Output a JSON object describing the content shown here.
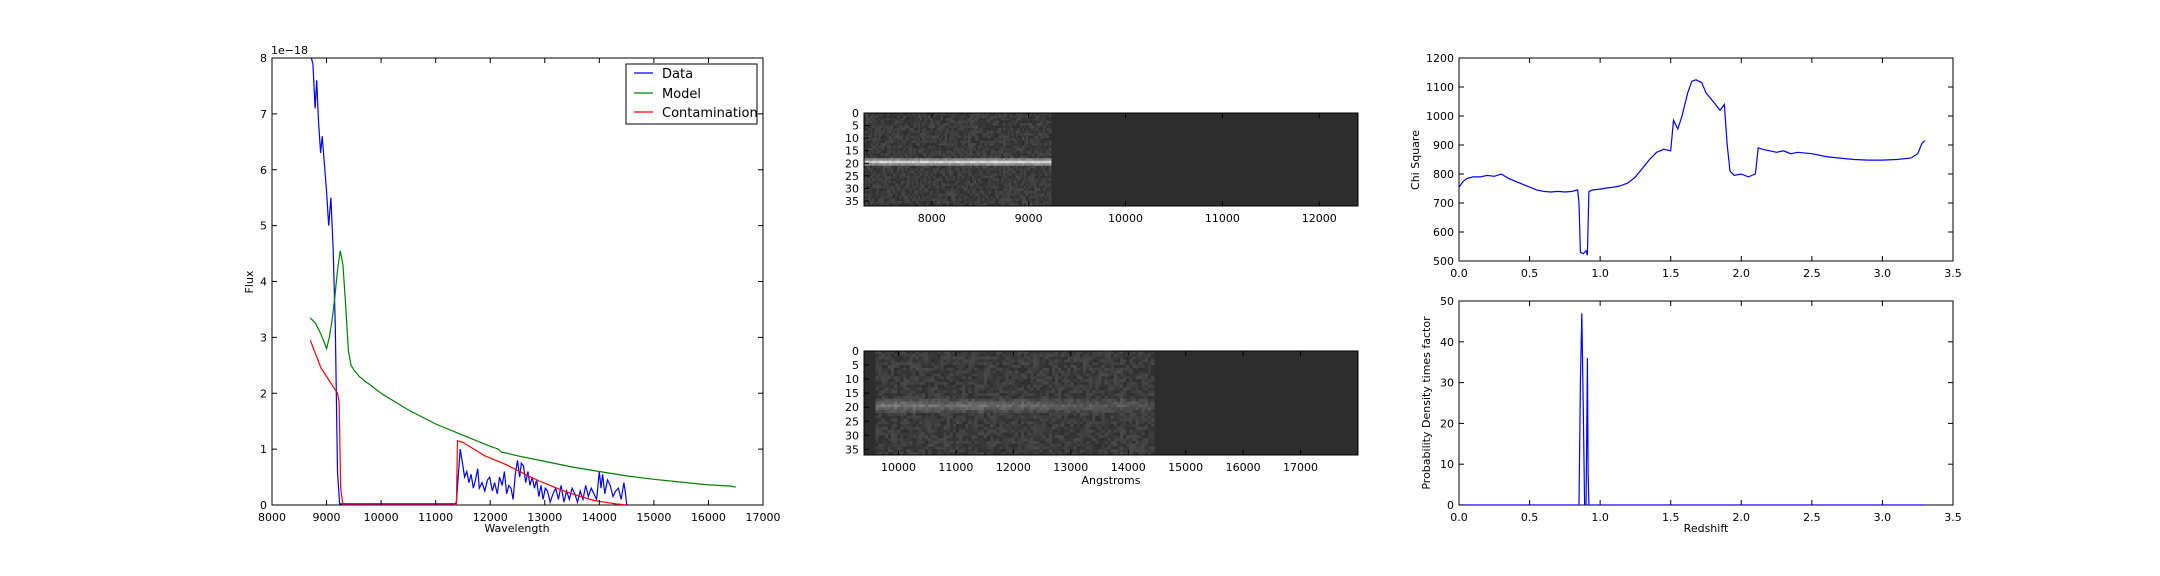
{
  "chart_data": [
    {
      "type": "line",
      "xlabel": "Wavelength",
      "ylabel": "Flux",
      "offset_label": "1e−18",
      "xlim": [
        8000,
        17000
      ],
      "ylim": [
        0,
        8
      ],
      "xticks": [
        "8000",
        "9000",
        "10000",
        "11000",
        "12000",
        "13000",
        "14000",
        "15000",
        "16000",
        "17000"
      ],
      "yticks": [
        "0",
        "1",
        "2",
        "3",
        "4",
        "5",
        "6",
        "7",
        "8"
      ],
      "legend": "top-right",
      "series": [
        {
          "name": "Data",
          "color": "#0000ff",
          "x": [
            8720,
            8750,
            8790,
            8820,
            8850,
            8890,
            8920,
            8960,
            9000,
            9040,
            9080,
            9120,
            9160,
            9200,
            9240,
            9270,
            9300,
            9350,
            9400,
            11350,
            11380,
            11420,
            11450,
            11500,
            11530,
            11570,
            11610,
            11650,
            11690,
            11730,
            11770,
            11800,
            11850,
            11900,
            11950,
            11990,
            12040,
            12080,
            12130,
            12170,
            12220,
            12260,
            12300,
            12340,
            12380,
            12420,
            12460,
            12500,
            12540,
            12570,
            12610,
            12650,
            12690,
            12730,
            12770,
            12810,
            12850,
            12890,
            12930,
            12970,
            13010,
            13050,
            13100,
            13150,
            13200,
            13250,
            13300,
            13350,
            13400,
            13450,
            13500,
            13550,
            13600,
            13650,
            13700,
            13750,
            13800,
            13850,
            13900,
            13950,
            14000,
            14030,
            14060,
            14100,
            14150,
            14200,
            14250,
            14300,
            14350,
            14400,
            14450,
            14480,
            14500,
            14520
          ],
          "y": [
            8.0,
            7.9,
            7.1,
            7.6,
            6.9,
            6.3,
            6.6,
            6.1,
            5.6,
            5.0,
            5.5,
            4.6,
            3.2,
            0.6,
            0.02,
            0.02,
            0.02,
            0.02,
            0.02,
            0.02,
            0.05,
            0.6,
            1.0,
            0.7,
            0.5,
            0.6,
            0.4,
            0.55,
            0.3,
            0.45,
            0.65,
            0.3,
            0.4,
            0.25,
            0.45,
            0.5,
            0.25,
            0.4,
            0.2,
            0.5,
            0.35,
            0.6,
            0.2,
            0.35,
            0.3,
            0.1,
            0.55,
            0.8,
            0.5,
            0.75,
            0.7,
            0.4,
            0.6,
            0.35,
            0.5,
            0.3,
            0.45,
            0.15,
            0.35,
            0.1,
            0.3,
            0.25,
            0.05,
            0.2,
            0.3,
            0.1,
            0.35,
            0.05,
            0.25,
            0.1,
            0.3,
            0.2,
            0.05,
            0.25,
            0.1,
            0.35,
            0.15,
            0.3,
            0.2,
            0.1,
            0.6,
            0.3,
            0.55,
            0.2,
            0.45,
            0.35,
            0.15,
            0.25,
            0.3,
            0.1,
            0.4,
            0.2,
            0.02,
            0.0
          ]
        },
        {
          "name": "Model",
          "color": "#008000",
          "x": [
            8700,
            8800,
            8900,
            9000,
            9050,
            9100,
            9150,
            9200,
            9250,
            9300,
            9350,
            9400,
            9450,
            9500,
            9600,
            9700,
            9800,
            10000,
            10500,
            11000,
            11500,
            12000,
            12150,
            12200,
            12500,
            13000,
            13500,
            14000,
            14500,
            15000,
            15500,
            16000,
            16400,
            16500
          ],
          "y": [
            3.35,
            3.25,
            3.05,
            2.8,
            3.0,
            3.3,
            3.7,
            4.2,
            4.55,
            4.3,
            3.6,
            2.75,
            2.5,
            2.42,
            2.3,
            2.22,
            2.15,
            2.0,
            1.7,
            1.45,
            1.25,
            1.05,
            1.0,
            0.95,
            0.88,
            0.78,
            0.68,
            0.6,
            0.52,
            0.46,
            0.41,
            0.36,
            0.34,
            0.32
          ]
        },
        {
          "name": "Contamination",
          "color": "#ff0000",
          "x": [
            8700,
            8800,
            8900,
            9000,
            9100,
            9200,
            9230,
            9260,
            9300,
            11350,
            11380,
            11400,
            11500,
            11700,
            11900,
            12100,
            12300,
            12500,
            12700,
            12900,
            13100,
            13300,
            13500,
            13700,
            13900,
            14100,
            14300,
            14500
          ],
          "y": [
            2.95,
            2.7,
            2.45,
            2.3,
            2.15,
            2.0,
            1.85,
            0.3,
            0.0,
            0.0,
            0.0,
            1.15,
            1.12,
            1.0,
            0.88,
            0.8,
            0.72,
            0.62,
            0.52,
            0.43,
            0.35,
            0.27,
            0.2,
            0.14,
            0.08,
            0.05,
            0.02,
            0.0
          ]
        }
      ]
    },
    {
      "type": "heatmap",
      "xlim": [
        7300,
        12400
      ],
      "ylim": [
        37,
        0
      ],
      "xticks": [
        "8000",
        "9000",
        "10000",
        "11000",
        "12000"
      ],
      "yticks": [
        "0",
        "5",
        "10",
        "15",
        "20",
        "25",
        "30",
        "35"
      ],
      "trace_row": 19,
      "data_xrange": [
        7300,
        9230
      ]
    },
    {
      "type": "heatmap",
      "xlabel": "Angstroms",
      "xlim": [
        9400,
        18000
      ],
      "ylim": [
        37,
        0
      ],
      "xticks": [
        "10000",
        "11000",
        "12000",
        "13000",
        "14000",
        "15000",
        "16000",
        "17000"
      ],
      "yticks": [
        "0",
        "5",
        "10",
        "15",
        "20",
        "25",
        "30",
        "35"
      ],
      "trace_row": 19,
      "data_xrange": [
        9600,
        14450
      ]
    },
    {
      "type": "line",
      "ylabel": "Chi Square",
      "xlim": [
        0,
        3.5
      ],
      "ylim": [
        500,
        1200
      ],
      "xticks": [
        "0.0",
        "0.5",
        "1.0",
        "1.5",
        "2.0",
        "2.5",
        "3.0",
        "3.5"
      ],
      "yticks": [
        "500",
        "600",
        "700",
        "800",
        "900",
        "1000",
        "1100",
        "1200"
      ],
      "series": [
        {
          "color": "#0000ff",
          "x": [
            0.0,
            0.03,
            0.06,
            0.1,
            0.15,
            0.2,
            0.25,
            0.3,
            0.35,
            0.4,
            0.45,
            0.5,
            0.55,
            0.6,
            0.65,
            0.7,
            0.75,
            0.8,
            0.84,
            0.85,
            0.86,
            0.88,
            0.9,
            0.91,
            0.92,
            0.95,
            1.0,
            1.05,
            1.1,
            1.15,
            1.2,
            1.25,
            1.3,
            1.35,
            1.4,
            1.45,
            1.5,
            1.52,
            1.55,
            1.58,
            1.62,
            1.65,
            1.68,
            1.72,
            1.75,
            1.8,
            1.85,
            1.88,
            1.9,
            1.92,
            1.95,
            2.0,
            2.05,
            2.1,
            2.12,
            2.15,
            2.2,
            2.25,
            2.3,
            2.35,
            2.4,
            2.5,
            2.6,
            2.7,
            2.8,
            2.9,
            3.0,
            3.1,
            3.2,
            3.25,
            3.28,
            3.3
          ],
          "y": [
            755,
            775,
            785,
            790,
            790,
            795,
            792,
            800,
            785,
            775,
            765,
            755,
            745,
            740,
            738,
            740,
            738,
            740,
            745,
            700,
            530,
            525,
            535,
            520,
            740,
            745,
            748,
            752,
            755,
            760,
            770,
            790,
            820,
            850,
            875,
            885,
            880,
            985,
            955,
            1000,
            1080,
            1120,
            1125,
            1115,
            1080,
            1050,
            1020,
            1040,
            900,
            810,
            795,
            800,
            790,
            800,
            890,
            885,
            880,
            875,
            880,
            870,
            875,
            870,
            860,
            855,
            850,
            848,
            848,
            850,
            855,
            870,
            905,
            915
          ]
        }
      ]
    },
    {
      "type": "line",
      "xlabel": "Redshift",
      "ylabel": "Probability Density times factor",
      "xlim": [
        0,
        3.5
      ],
      "ylim": [
        0,
        50
      ],
      "xticks": [
        "0.0",
        "0.5",
        "1.0",
        "1.5",
        "2.0",
        "2.5",
        "3.0",
        "3.5"
      ],
      "yticks": [
        "0",
        "10",
        "20",
        "30",
        "40",
        "50"
      ],
      "series": [
        {
          "color": "#0000ff",
          "x": [
            0.0,
            0.85,
            0.86,
            0.87,
            0.88,
            0.89,
            0.9,
            0.905,
            0.91,
            0.915,
            0.92,
            1.0,
            3.3
          ],
          "y": [
            0,
            0,
            30,
            47,
            25,
            0,
            0,
            15,
            36,
            8,
            0,
            0,
            0
          ]
        }
      ]
    }
  ]
}
